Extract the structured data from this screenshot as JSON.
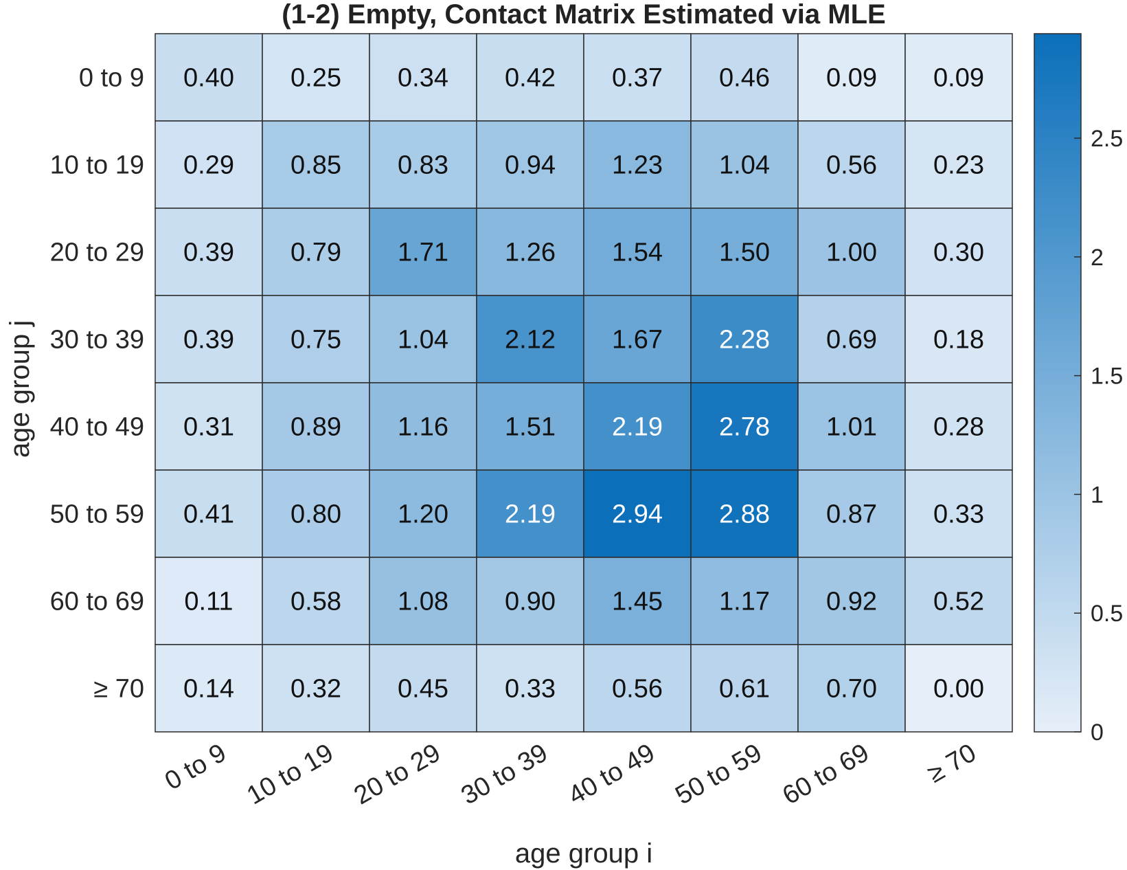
{
  "chart_data": {
    "type": "heatmap",
    "title": "(1-2) Empty, Contact Matrix Estimated via MLE",
    "xlabel": "age group i",
    "ylabel": "age group j",
    "x_categories": [
      "0 to 9",
      "10 to 19",
      "20 to 29",
      "30 to 39",
      "40 to 49",
      "50 to 59",
      "60 to 69",
      "≥ 70"
    ],
    "y_categories": [
      "0 to 9",
      "10 to 19",
      "20 to 29",
      "30 to 39",
      "40 to 49",
      "50 to 59",
      "60 to 69",
      "≥ 70"
    ],
    "values": [
      [
        0.4,
        0.25,
        0.34,
        0.42,
        0.37,
        0.46,
        0.09,
        0.09
      ],
      [
        0.29,
        0.85,
        0.83,
        0.94,
        1.23,
        1.04,
        0.56,
        0.23
      ],
      [
        0.39,
        0.79,
        1.71,
        1.26,
        1.54,
        1.5,
        1.0,
        0.3
      ],
      [
        0.39,
        0.75,
        1.04,
        2.12,
        1.67,
        2.28,
        0.69,
        0.18
      ],
      [
        0.31,
        0.89,
        1.16,
        1.51,
        2.19,
        2.78,
        1.01,
        0.28
      ],
      [
        0.41,
        0.8,
        1.2,
        2.19,
        2.94,
        2.88,
        0.87,
        0.33
      ],
      [
        0.11,
        0.58,
        1.08,
        0.9,
        1.45,
        1.17,
        0.92,
        0.52
      ],
      [
        0.14,
        0.32,
        0.45,
        0.33,
        0.56,
        0.61,
        0.7,
        0.0
      ]
    ],
    "value_labels": [
      [
        "0.40",
        "0.25",
        "0.34",
        "0.42",
        "0.37",
        "0.46",
        "0.09",
        "0.09"
      ],
      [
        "0.29",
        "0.85",
        "0.83",
        "0.94",
        "1.23",
        "1.04",
        "0.56",
        "0.23"
      ],
      [
        "0.39",
        "0.79",
        "1.71",
        "1.26",
        "1.54",
        "1.50",
        "1.00",
        "0.30"
      ],
      [
        "0.39",
        "0.75",
        "1.04",
        "2.12",
        "1.67",
        "2.28",
        "0.69",
        "0.18"
      ],
      [
        "0.31",
        "0.89",
        "1.16",
        "1.51",
        "2.19",
        "2.78",
        "1.01",
        "0.28"
      ],
      [
        "0.41",
        "0.80",
        "1.20",
        "2.19",
        "2.94",
        "2.88",
        "0.87",
        "0.33"
      ],
      [
        "0.11",
        "0.58",
        "1.08",
        "0.90",
        "1.45",
        "1.17",
        "0.92",
        "0.52"
      ],
      [
        "0.14",
        "0.32",
        "0.45",
        "0.33",
        "0.56",
        "0.61",
        "0.70",
        "0.00"
      ]
    ],
    "colorbar": {
      "range": [
        0,
        2.94
      ],
      "ticks": [
        0,
        0.5,
        1,
        1.5,
        2,
        2.5
      ],
      "tick_labels": [
        "0",
        "0.5",
        "1",
        "1.5",
        "2",
        "2.5"
      ],
      "low_color": "#e6eff9",
      "high_color": "#0b6fba"
    },
    "light_text_threshold": 2.15,
    "grid": false
  }
}
